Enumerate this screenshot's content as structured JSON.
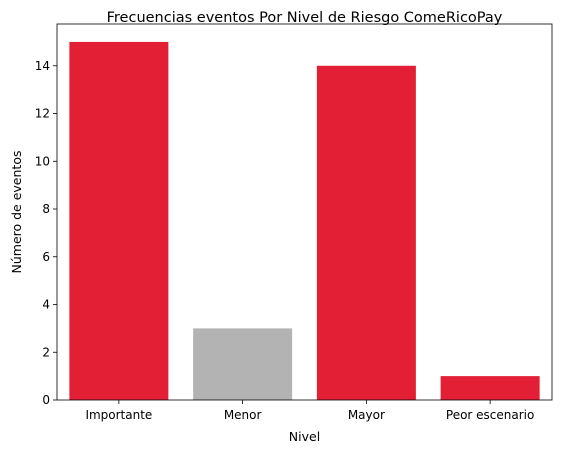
{
  "chart_data": {
    "type": "bar",
    "title": "Frecuencias eventos Por Nivel de Riesgo ComeRicoPay",
    "xlabel": "Nivel",
    "ylabel": "Número de eventos",
    "categories": [
      "Importante",
      "Menor",
      "Mayor",
      "Peor escenario"
    ],
    "values": [
      15,
      3,
      14,
      1
    ],
    "bar_colors": [
      "#e31f35",
      "#b3b3b3",
      "#e31f35",
      "#e31f35"
    ],
    "ylim": [
      0,
      15.75
    ],
    "yticks": [
      0,
      2,
      4,
      6,
      8,
      10,
      12,
      14
    ],
    "grid": false,
    "legend": "none"
  }
}
